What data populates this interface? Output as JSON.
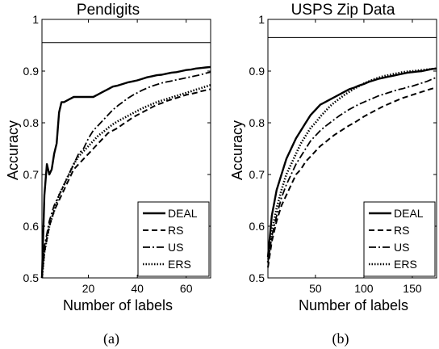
{
  "chart_data": [
    {
      "type": "line",
      "panel_label": "(a)",
      "title": "Pendigits",
      "xlabel": "Number of labels",
      "ylabel": "Accuracy",
      "xlim": [
        1,
        70
      ],
      "ylim": [
        0.5,
        1.0
      ],
      "xticks": [
        20,
        40,
        60
      ],
      "yticks": [
        0.5,
        0.6,
        0.7,
        0.8,
        0.9,
        1.0
      ],
      "ytick_labels": [
        "0.5",
        "0.6",
        "0.7",
        "0.8",
        "0.9",
        "1"
      ],
      "reference_line": 0.955,
      "grid": false,
      "legend_position": "bottom-right",
      "series": [
        {
          "name": "DEAL",
          "style": "solid",
          "x": [
            1,
            2,
            3,
            4,
            5,
            6,
            7,
            8,
            9,
            10,
            12,
            14,
            16,
            18,
            20,
            22,
            24,
            26,
            28,
            30,
            32,
            34,
            36,
            38,
            40,
            42,
            44,
            46,
            48,
            50,
            52,
            54,
            56,
            58,
            60,
            62,
            64,
            66,
            68,
            70
          ],
          "y": [
            0.5,
            0.66,
            0.72,
            0.7,
            0.71,
            0.74,
            0.76,
            0.82,
            0.84,
            0.84,
            0.845,
            0.85,
            0.85,
            0.85,
            0.85,
            0.85,
            0.855,
            0.86,
            0.865,
            0.87,
            0.872,
            0.875,
            0.878,
            0.88,
            0.882,
            0.885,
            0.888,
            0.89,
            0.892,
            0.893,
            0.895,
            0.897,
            0.898,
            0.9,
            0.902,
            0.903,
            0.905,
            0.906,
            0.907,
            0.908
          ]
        },
        {
          "name": "RS",
          "style": "dashed",
          "x": [
            1,
            2,
            4,
            6,
            8,
            10,
            12,
            14,
            16,
            18,
            20,
            22,
            24,
            26,
            28,
            30,
            32,
            34,
            36,
            38,
            40,
            42,
            44,
            46,
            48,
            50,
            52,
            54,
            56,
            58,
            60,
            62,
            64,
            66,
            68,
            70
          ],
          "y": [
            0.5,
            0.55,
            0.6,
            0.63,
            0.65,
            0.67,
            0.69,
            0.71,
            0.72,
            0.73,
            0.74,
            0.75,
            0.76,
            0.77,
            0.78,
            0.785,
            0.79,
            0.797,
            0.803,
            0.81,
            0.815,
            0.82,
            0.825,
            0.83,
            0.835,
            0.838,
            0.842,
            0.845,
            0.848,
            0.851,
            0.854,
            0.856,
            0.858,
            0.861,
            0.863,
            0.865
          ]
        },
        {
          "name": "US",
          "style": "dashdot",
          "x": [
            1,
            2,
            4,
            6,
            8,
            10,
            12,
            14,
            16,
            18,
            20,
            22,
            24,
            26,
            28,
            30,
            32,
            34,
            36,
            38,
            40,
            42,
            44,
            46,
            48,
            50,
            52,
            54,
            56,
            58,
            60,
            62,
            64,
            66,
            68,
            70
          ],
          "y": [
            0.5,
            0.56,
            0.61,
            0.64,
            0.66,
            0.68,
            0.7,
            0.72,
            0.74,
            0.75,
            0.77,
            0.785,
            0.795,
            0.805,
            0.815,
            0.825,
            0.833,
            0.84,
            0.847,
            0.853,
            0.858,
            0.863,
            0.867,
            0.871,
            0.874,
            0.877,
            0.879,
            0.881,
            0.883,
            0.885,
            0.887,
            0.889,
            0.891,
            0.893,
            0.896,
            0.898
          ]
        },
        {
          "name": "ERS",
          "style": "dotted",
          "x": [
            1,
            2,
            4,
            6,
            8,
            10,
            12,
            14,
            16,
            18,
            20,
            22,
            24,
            26,
            28,
            30,
            32,
            34,
            36,
            38,
            40,
            42,
            44,
            46,
            48,
            50,
            52,
            54,
            56,
            58,
            60,
            62,
            64,
            66,
            68,
            70
          ],
          "y": [
            0.5,
            0.55,
            0.6,
            0.63,
            0.66,
            0.68,
            0.7,
            0.72,
            0.735,
            0.745,
            0.755,
            0.765,
            0.775,
            0.782,
            0.79,
            0.797,
            0.803,
            0.808,
            0.813,
            0.818,
            0.823,
            0.828,
            0.832,
            0.836,
            0.84,
            0.843,
            0.846,
            0.849,
            0.852,
            0.855,
            0.858,
            0.861,
            0.864,
            0.867,
            0.87,
            0.873
          ]
        }
      ]
    },
    {
      "type": "line",
      "panel_label": "(b)",
      "title": "USPS Zip Data",
      "xlabel": "Number of labels",
      "ylabel": "Accuracy",
      "xlim": [
        1,
        175
      ],
      "ylim": [
        0.5,
        1.0
      ],
      "xticks": [
        50,
        100,
        150
      ],
      "yticks": [
        0.5,
        0.6,
        0.7,
        0.8,
        0.9,
        1.0
      ],
      "ytick_labels": [
        "0.5",
        "0.6",
        "0.7",
        "0.8",
        "0.9",
        "1"
      ],
      "reference_line": 0.965,
      "grid": false,
      "legend_position": "bottom-right",
      "series": [
        {
          "name": "DEAL",
          "style": "solid",
          "x": [
            1,
            5,
            10,
            15,
            20,
            25,
            30,
            35,
            40,
            45,
            50,
            55,
            60,
            65,
            70,
            75,
            80,
            85,
            90,
            95,
            100,
            105,
            110,
            115,
            120,
            125,
            130,
            135,
            140,
            145,
            150,
            155,
            160,
            165,
            170,
            175
          ],
          "y": [
            0.54,
            0.62,
            0.67,
            0.7,
            0.73,
            0.75,
            0.77,
            0.785,
            0.8,
            0.815,
            0.825,
            0.835,
            0.84,
            0.845,
            0.85,
            0.855,
            0.86,
            0.865,
            0.868,
            0.872,
            0.875,
            0.879,
            0.882,
            0.885,
            0.887,
            0.889,
            0.891,
            0.893,
            0.895,
            0.897,
            0.898,
            0.899,
            0.9,
            0.902,
            0.904,
            0.905
          ]
        },
        {
          "name": "RS",
          "style": "dashed",
          "x": [
            1,
            5,
            10,
            15,
            20,
            25,
            30,
            35,
            40,
            45,
            50,
            55,
            60,
            65,
            70,
            75,
            80,
            85,
            90,
            95,
            100,
            105,
            110,
            115,
            120,
            125,
            130,
            135,
            140,
            145,
            150,
            155,
            160,
            165,
            170,
            175
          ],
          "y": [
            0.52,
            0.57,
            0.61,
            0.64,
            0.66,
            0.68,
            0.7,
            0.71,
            0.725,
            0.735,
            0.745,
            0.755,
            0.762,
            0.77,
            0.777,
            0.783,
            0.789,
            0.795,
            0.8,
            0.806,
            0.812,
            0.817,
            0.822,
            0.827,
            0.832,
            0.836,
            0.84,
            0.844,
            0.848,
            0.851,
            0.854,
            0.857,
            0.86,
            0.863,
            0.866,
            0.868
          ]
        },
        {
          "name": "US",
          "style": "dashdot",
          "x": [
            1,
            5,
            10,
            15,
            20,
            25,
            30,
            35,
            40,
            45,
            50,
            55,
            60,
            65,
            70,
            75,
            80,
            85,
            90,
            95,
            100,
            105,
            110,
            115,
            120,
            125,
            130,
            135,
            140,
            145,
            150,
            155,
            160,
            165,
            170,
            175
          ],
          "y": [
            0.53,
            0.58,
            0.62,
            0.655,
            0.68,
            0.7,
            0.72,
            0.735,
            0.75,
            0.765,
            0.775,
            0.785,
            0.793,
            0.8,
            0.807,
            0.814,
            0.82,
            0.826,
            0.831,
            0.836,
            0.84,
            0.844,
            0.848,
            0.852,
            0.855,
            0.858,
            0.861,
            0.864,
            0.866,
            0.869,
            0.871,
            0.874,
            0.877,
            0.88,
            0.884,
            0.888
          ]
        },
        {
          "name": "ERS",
          "style": "dotted",
          "x": [
            1,
            5,
            10,
            15,
            20,
            25,
            30,
            35,
            40,
            45,
            50,
            55,
            60,
            65,
            70,
            75,
            80,
            85,
            90,
            95,
            100,
            105,
            110,
            115,
            120,
            125,
            130,
            135,
            140,
            145,
            150,
            155,
            160,
            165,
            170,
            175
          ],
          "y": [
            0.53,
            0.59,
            0.635,
            0.67,
            0.7,
            0.72,
            0.74,
            0.76,
            0.775,
            0.79,
            0.8,
            0.812,
            0.822,
            0.832,
            0.84,
            0.847,
            0.854,
            0.86,
            0.866,
            0.871,
            0.876,
            0.88,
            0.884,
            0.887,
            0.89,
            0.892,
            0.894,
            0.896,
            0.898,
            0.899,
            0.9,
            0.901,
            0.902,
            0.903,
            0.904,
            0.905
          ]
        }
      ]
    }
  ]
}
